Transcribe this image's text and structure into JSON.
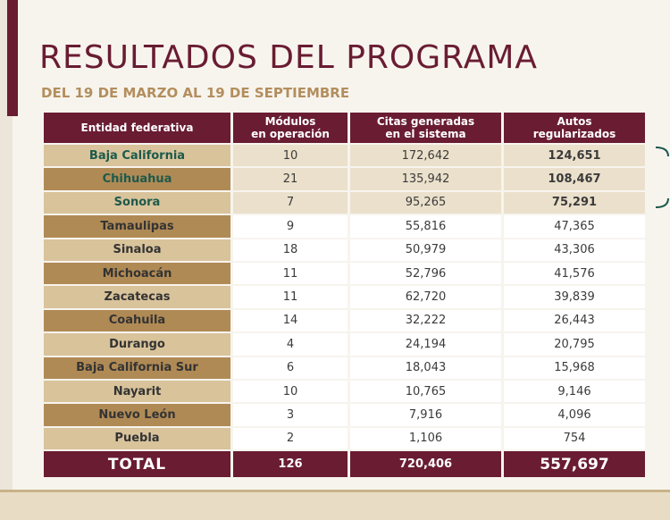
{
  "title": "RESULTADOS DEL PROGRAMA",
  "subtitle": "DEL 19 DE MARZO AL 19 DE SEPTIEMBRE",
  "colors": {
    "primary": "#691c32",
    "gold": "#b38e5d",
    "green": "#1d5a4b"
  },
  "table": {
    "headers": [
      [
        "Entidad federativa"
      ],
      [
        "Módulos",
        "en operación"
      ],
      [
        "Citas generadas",
        "en el sistema"
      ],
      [
        "Autos",
        "regularizados"
      ]
    ],
    "rows": [
      [
        "Baja California",
        "10",
        "172,642",
        "124,651"
      ],
      [
        "Chihuahua",
        "21",
        "135,942",
        "108,467"
      ],
      [
        "Sonora",
        "7",
        "95,265",
        "75,291"
      ],
      [
        "Tamaulipas",
        "9",
        "55,816",
        "47,365"
      ],
      [
        "Sinaloa",
        "18",
        "50,979",
        "43,306"
      ],
      [
        "Michoacán",
        "11",
        "52,796",
        "41,576"
      ],
      [
        "Zacatecas",
        "11",
        "62,720",
        "39,839"
      ],
      [
        "Coahuila",
        "14",
        "32,222",
        "26,443"
      ],
      [
        "Durango",
        "4",
        "24,194",
        "20,795"
      ],
      [
        "Baja California Sur",
        "6",
        "18,043",
        "15,968"
      ],
      [
        "Nayarit",
        "10",
        "10,765",
        "9,146"
      ],
      [
        "Nuevo León",
        "3",
        "7,916",
        "4,096"
      ],
      [
        "Puebla",
        "2",
        "1,106",
        "754"
      ]
    ],
    "total": [
      "TOTAL",
      "126",
      "720,406",
      "557,697"
    ]
  }
}
